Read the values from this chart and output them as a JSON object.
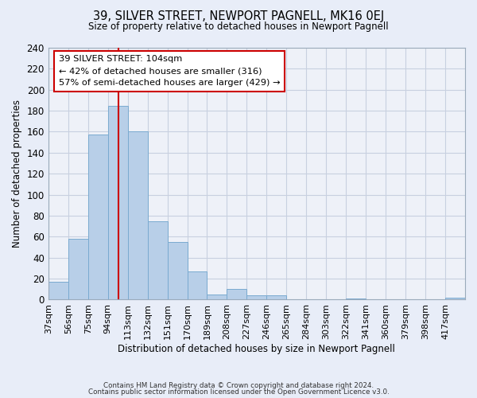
{
  "title": "39, SILVER STREET, NEWPORT PAGNELL, MK16 0EJ",
  "subtitle": "Size of property relative to detached houses in Newport Pagnell",
  "xlabel": "Distribution of detached houses by size in Newport Pagnell",
  "ylabel": "Number of detached properties",
  "bar_color": "#b8cfe8",
  "bar_edge_color": "#7aaad0",
  "vline_color": "#cc0000",
  "vline_x": 104,
  "categories": [
    "37sqm",
    "56sqm",
    "75sqm",
    "94sqm",
    "113sqm",
    "132sqm",
    "151sqm",
    "170sqm",
    "189sqm",
    "208sqm",
    "227sqm",
    "246sqm",
    "265sqm",
    "284sqm",
    "303sqm",
    "322sqm",
    "341sqm",
    "360sqm",
    "379sqm",
    "398sqm",
    "417sqm"
  ],
  "bin_edges": [
    37,
    56,
    75,
    94,
    113,
    132,
    151,
    170,
    189,
    208,
    227,
    246,
    265,
    284,
    303,
    322,
    341,
    360,
    379,
    398,
    417
  ],
  "values": [
    17,
    58,
    157,
    185,
    160,
    75,
    55,
    27,
    5,
    10,
    4,
    4,
    0,
    0,
    0,
    1,
    0,
    0,
    0,
    0,
    2
  ],
  "ylim": [
    0,
    240
  ],
  "yticks": [
    0,
    20,
    40,
    60,
    80,
    100,
    120,
    140,
    160,
    180,
    200,
    220,
    240
  ],
  "annotation_title": "39 SILVER STREET: 104sqm",
  "annotation_line1": "← 42% of detached houses are smaller (316)",
  "annotation_line2": "57% of semi-detached houses are larger (429) →",
  "footer1": "Contains HM Land Registry data © Crown copyright and database right 2024.",
  "footer2": "Contains public sector information licensed under the Open Government Licence v3.0.",
  "background_color": "#e8edf8",
  "plot_bg_color": "#eef1f8",
  "grid_color": "#c8d0e0"
}
